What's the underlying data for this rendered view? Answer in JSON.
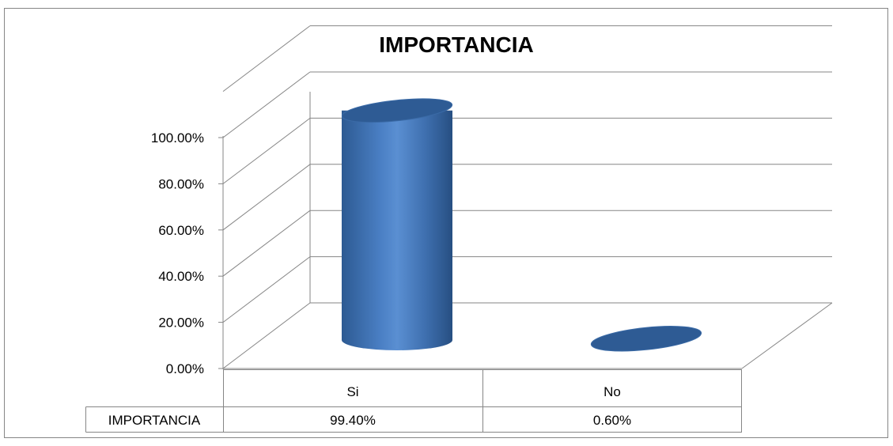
{
  "chart_data": {
    "type": "bar",
    "style": "3d-cylinder",
    "title": "IMPORTANCIA",
    "categories": [
      "Si",
      "No"
    ],
    "series": [
      {
        "name": "IMPORTANCIA",
        "values": [
          0.994,
          0.006
        ],
        "value_labels": [
          "99.40%",
          "0.60%"
        ]
      }
    ],
    "ylim": [
      0,
      1
    ],
    "yticks": [
      "0.00%",
      "20.00%",
      "40.00%",
      "60.00%",
      "80.00%",
      "100.00%"
    ],
    "grid": true,
    "legend": "data-table",
    "colors": {
      "bar": "#4f81bd",
      "bar_dark": "#2e5b94",
      "grid": "#868686",
      "border": "#868686"
    }
  }
}
